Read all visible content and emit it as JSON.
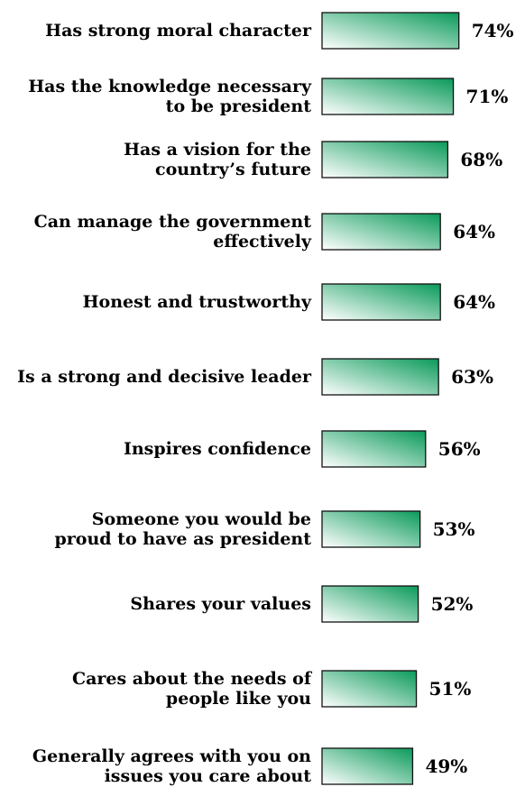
{
  "chart_data": {
    "type": "bar",
    "orientation": "horizontal",
    "categories": [
      [
        "Has strong moral character"
      ],
      [
        "Has the knowledge necessary",
        "to be president"
      ],
      [
        "Has a vision for the",
        "country’s future"
      ],
      [
        "Can manage the government",
        "effectively"
      ],
      [
        "Honest and trustworthy"
      ],
      [
        "Is a strong and decisive leader"
      ],
      [
        "Inspires confidence"
      ],
      [
        "Someone you would be",
        "proud to have as president"
      ],
      [
        "Shares your values"
      ],
      [
        "Cares about the needs of",
        "people like you"
      ],
      [
        "Generally agrees with you on",
        "issues you care about"
      ]
    ],
    "values": [
      74,
      71,
      68,
      64,
      64,
      63,
      56,
      53,
      52,
      51,
      49
    ],
    "value_labels": [
      "74%",
      "71%",
      "68%",
      "64%",
      "64%",
      "63%",
      "56%",
      "53%",
      "52%",
      "51%",
      "49%"
    ],
    "unit": "%",
    "bar_gradient": [
      "#ffffff",
      "#0a9a5a"
    ],
    "bar_outline": "#111111",
    "grid": false,
    "legend": "none"
  }
}
